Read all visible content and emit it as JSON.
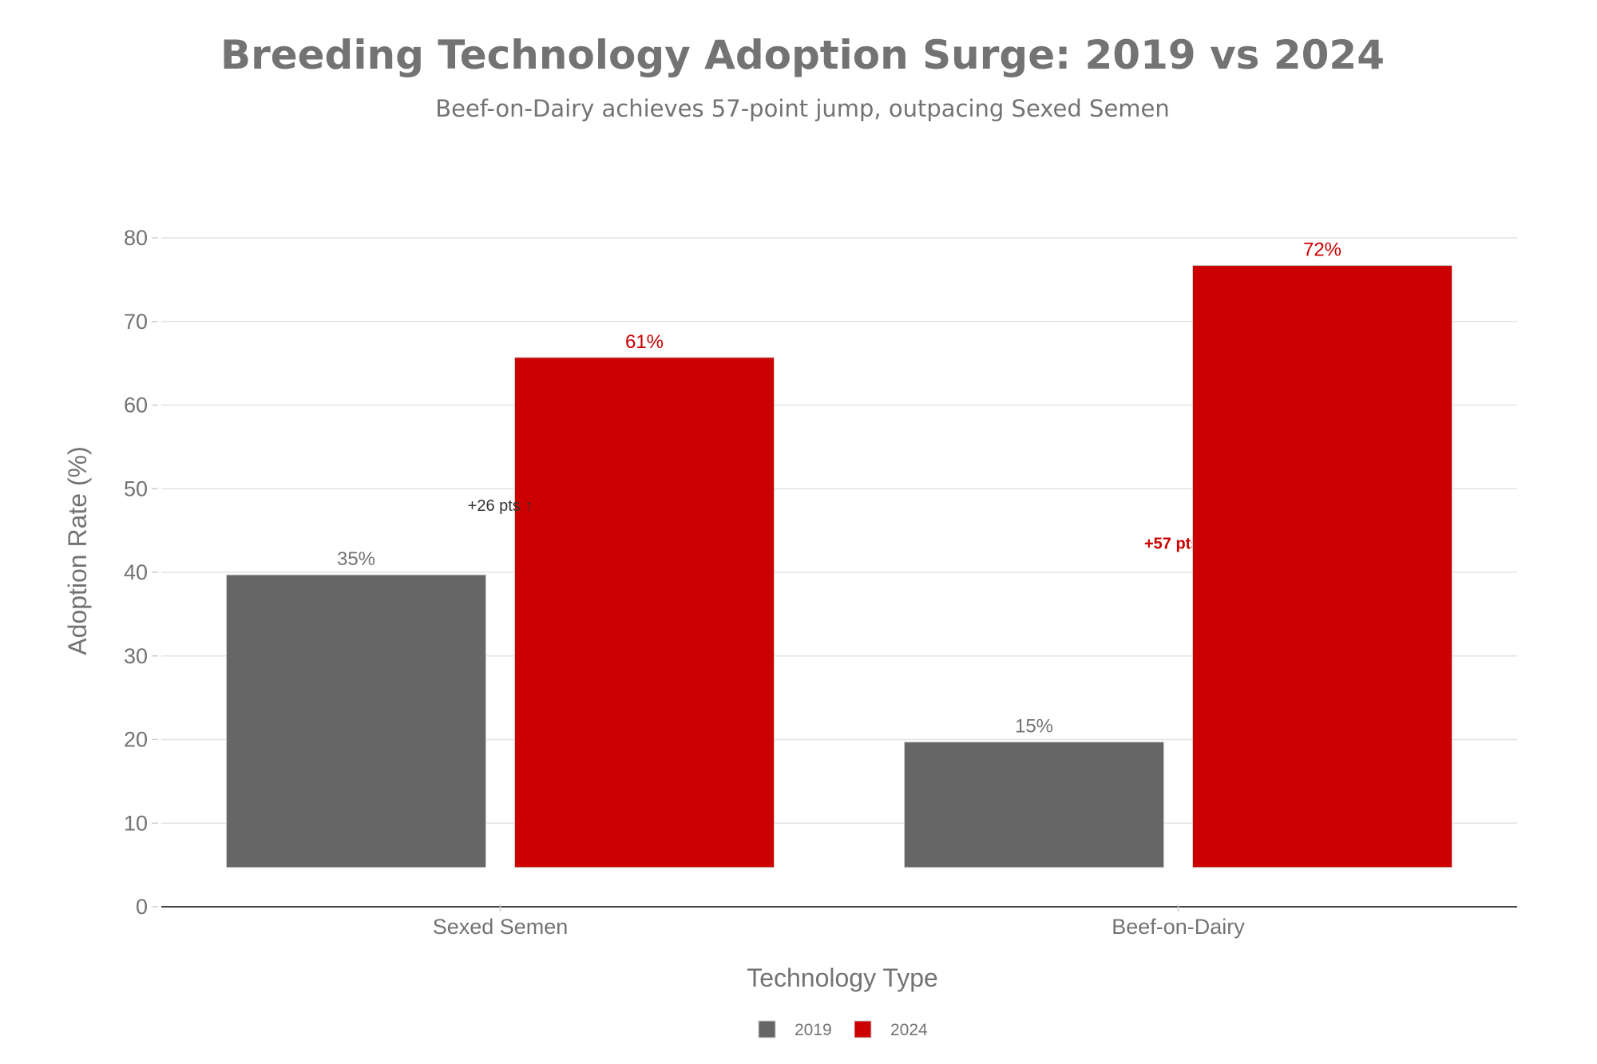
{
  "chart_data": {
    "type": "bar",
    "title": "Breeding Technology Adoption Surge: 2019 vs 2024",
    "subtitle": "Beef-on-Dairy achieves 57-point jump, outpacing Sexed Semen",
    "xlabel": "Technology Type",
    "ylabel": "Adoption Rate (%)",
    "ylim": [
      0,
      80
    ],
    "yticks": [
      0,
      10,
      20,
      30,
      40,
      50,
      60,
      70,
      80
    ],
    "grid": true,
    "categories": [
      "Sexed Semen",
      "Beef-on-Dairy"
    ],
    "series": [
      {
        "name": "2019",
        "color": "#666666",
        "label_color": "#737373",
        "values": [
          35,
          15
        ],
        "labels": [
          "35%",
          "15%"
        ]
      },
      {
        "name": "2024",
        "color": "#cc0000",
        "label_color": "#cc0000",
        "values": [
          61,
          72
        ],
        "labels": [
          "61%",
          "72%"
        ]
      }
    ],
    "bar_baseline_offset": 4.7,
    "annotations": [
      {
        "category": "Sexed Semen",
        "text": "+26 pts ↑",
        "y": 48,
        "color": "#333333",
        "bold": false
      },
      {
        "category": "Beef-on-Dairy",
        "text": "+57 pts ↑",
        "y": 43.5,
        "color": "#cc0000",
        "bold": true
      }
    ],
    "legend": {
      "position": "bottom-center",
      "entries": [
        "2019",
        "2024"
      ]
    }
  }
}
